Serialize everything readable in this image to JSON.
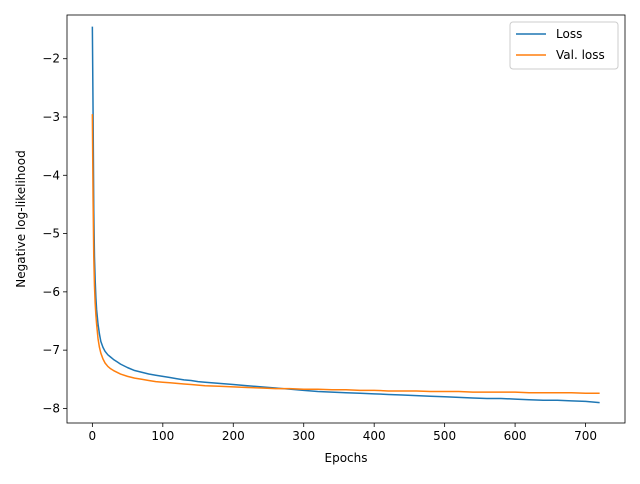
{
  "chart_data": {
    "type": "line",
    "title": "",
    "xlabel": "Epochs",
    "ylabel": "Negative log-likelihood",
    "xlim": [
      -36,
      756
    ],
    "ylim": [
      -8.25,
      -1.25
    ],
    "xticks": [
      0,
      100,
      200,
      300,
      400,
      500,
      600,
      700
    ],
    "yticks": [
      -8,
      -7,
      -6,
      -5,
      -4,
      -3,
      -2
    ],
    "xtick_labels": [
      "0",
      "100",
      "200",
      "300",
      "400",
      "500",
      "600",
      "700"
    ],
    "ytick_labels": [
      "−8",
      "−7",
      "−6",
      "−5",
      "−4",
      "−3",
      "−2"
    ],
    "grid": false,
    "legend_position": "top-right",
    "series": [
      {
        "name": "Loss",
        "color": "#1f77b4",
        "x": [
          0,
          1,
          2,
          3,
          4,
          5,
          6,
          8,
          10,
          12,
          15,
          18,
          22,
          26,
          30,
          35,
          40,
          50,
          60,
          70,
          80,
          90,
          100,
          110,
          120,
          130,
          140,
          150,
          160,
          180,
          200,
          220,
          240,
          260,
          280,
          300,
          320,
          340,
          360,
          380,
          400,
          420,
          440,
          460,
          480,
          500,
          520,
          540,
          560,
          580,
          600,
          620,
          640,
          660,
          680,
          700,
          720
        ],
        "y": [
          -1.45,
          -2.9,
          -4.6,
          -5.4,
          -5.8,
          -6.1,
          -6.3,
          -6.55,
          -6.72,
          -6.85,
          -6.95,
          -7.02,
          -7.08,
          -7.12,
          -7.16,
          -7.2,
          -7.24,
          -7.3,
          -7.35,
          -7.38,
          -7.41,
          -7.43,
          -7.45,
          -7.47,
          -7.49,
          -7.51,
          -7.52,
          -7.54,
          -7.55,
          -7.57,
          -7.59,
          -7.61,
          -7.63,
          -7.65,
          -7.67,
          -7.69,
          -7.71,
          -7.72,
          -7.73,
          -7.74,
          -7.75,
          -7.76,
          -7.77,
          -7.78,
          -7.79,
          -7.8,
          -7.81,
          -7.82,
          -7.83,
          -7.83,
          -7.84,
          -7.85,
          -7.86,
          -7.86,
          -7.87,
          -7.88,
          -7.9
        ]
      },
      {
        "name": "Val. loss",
        "color": "#ff7f0e",
        "x": [
          0,
          1,
          2,
          3,
          4,
          5,
          6,
          8,
          10,
          12,
          15,
          18,
          22,
          26,
          30,
          35,
          40,
          50,
          60,
          70,
          80,
          90,
          100,
          110,
          120,
          130,
          140,
          150,
          160,
          180,
          200,
          220,
          240,
          260,
          280,
          300,
          320,
          340,
          360,
          380,
          400,
          420,
          440,
          460,
          480,
          500,
          520,
          540,
          560,
          580,
          600,
          620,
          640,
          660,
          680,
          700,
          720
        ],
        "y": [
          -2.95,
          -4.4,
          -5.4,
          -5.9,
          -6.2,
          -6.4,
          -6.55,
          -6.8,
          -6.95,
          -7.05,
          -7.15,
          -7.22,
          -7.28,
          -7.32,
          -7.35,
          -7.38,
          -7.41,
          -7.45,
          -7.48,
          -7.5,
          -7.52,
          -7.54,
          -7.55,
          -7.56,
          -7.57,
          -7.58,
          -7.59,
          -7.6,
          -7.61,
          -7.62,
          -7.63,
          -7.64,
          -7.65,
          -7.66,
          -7.66,
          -7.67,
          -7.67,
          -7.68,
          -7.68,
          -7.69,
          -7.69,
          -7.7,
          -7.7,
          -7.7,
          -7.71,
          -7.71,
          -7.71,
          -7.72,
          -7.72,
          -7.72,
          -7.72,
          -7.73,
          -7.73,
          -7.73,
          -7.73,
          -7.74,
          -7.74
        ]
      }
    ]
  }
}
